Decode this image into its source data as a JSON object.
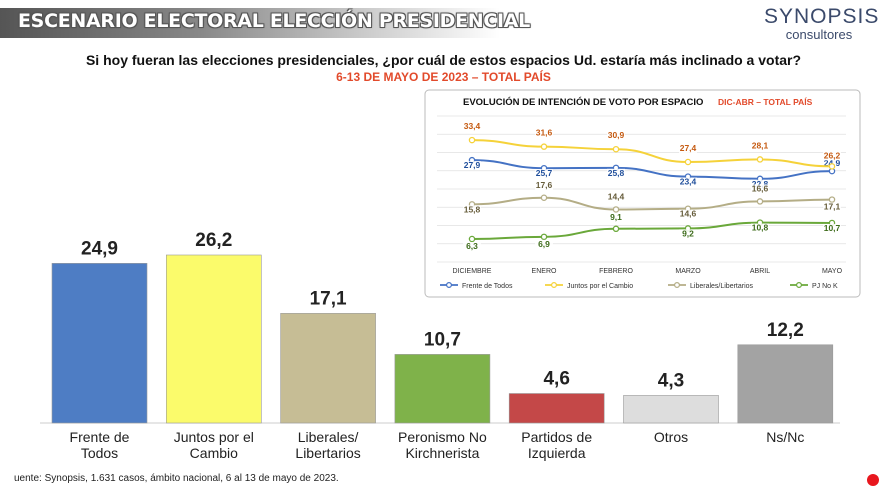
{
  "header": {
    "banner_title": "ESCENARIO ELECTORAL ELECCIÓN PRESIDENCIAL",
    "logo_name": "SYNOPSIS",
    "logo_sub": "consultores",
    "question": "Si hoy fueran las elecciones presidenciales, ¿por cuál de estos espacios Ud. estaría más inclinado a votar?",
    "date_line": "6-13 DE MAYO DE 2023 – TOTAL PAÍS"
  },
  "footer": {
    "source": "uente: Synopsis, 1.631 casos, ámbito nacional, 6 al 13 de mayo de 2023."
  },
  "colors": {
    "accent_red": "#e24a2b",
    "rec_dot": "#e8171e"
  },
  "chart_data": [
    {
      "type": "bar",
      "categories": [
        [
          "Frente de",
          "Todos"
        ],
        [
          "Juntos por el",
          "Cambio"
        ],
        [
          "Liberales/",
          "Libertarios"
        ],
        [
          "Peronismo No",
          "Kirchnerista"
        ],
        [
          "Partidos de",
          "Izquierda"
        ],
        [
          "Otros"
        ],
        [
          "Ns/Nc"
        ]
      ],
      "values": [
        24.9,
        26.2,
        17.1,
        10.7,
        4.6,
        4.3,
        12.2
      ],
      "value_labels": [
        "24,9",
        "26,2",
        "17,1",
        "10,7",
        "4,6",
        "4,3",
        "12,2"
      ],
      "colors": [
        "#4e7dc4",
        "#fbfb6b",
        "#c6bd95",
        "#7fb24a",
        "#c44848",
        "#dddddd",
        "#a3a3a3"
      ],
      "ylim": [
        0,
        26.2
      ],
      "grid": false,
      "legend": "none"
    },
    {
      "type": "line",
      "title": "EVOLUCIÓN DE INTENCIÓN DE VOTO POR ESPACIO",
      "subtitle": "DIC-ABR – TOTAL PAÍS",
      "x": [
        "DICIEMBRE",
        "ENERO",
        "FEBRERO",
        "MARZO",
        "ABRIL",
        "MAYO"
      ],
      "series": [
        {
          "name": "Frente de Todos",
          "color": "#4472c4",
          "values": [
            27.9,
            25.7,
            25.8,
            23.4,
            22.8,
            24.9
          ],
          "labels": [
            "27,9",
            "25,7",
            "25,8",
            "23,4",
            "22,8",
            "24,9"
          ],
          "label_color": "#1f4e9b"
        },
        {
          "name": "Juntos por el Cambio",
          "color": "#f5d23a",
          "values": [
            33.4,
            31.6,
            30.9,
            27.4,
            28.1,
            26.2
          ],
          "labels": [
            "33,4",
            "31,6",
            "30,9",
            "27,4",
            "28,1",
            "26,2"
          ],
          "label_color": "#c55a11"
        },
        {
          "name": "Liberales/Libertarios",
          "color": "#b4ad86",
          "values": [
            15.8,
            17.6,
            14.4,
            14.6,
            16.6,
            17.1
          ],
          "labels": [
            "15,8",
            "17,6",
            "14,4",
            "14,6",
            "16,6",
            "17,1"
          ],
          "label_color": "#665c3a"
        },
        {
          "name": "PJ No K",
          "color": "#6aa83a",
          "values": [
            6.3,
            6.9,
            9.1,
            9.2,
            10.8,
            10.7
          ],
          "labels": [
            "6,3",
            "6,9",
            "9,1",
            "9,2",
            "10,8",
            "10,7"
          ],
          "label_color": "#3d6b1a"
        }
      ],
      "ylim": [
        0,
        40
      ],
      "grid": true,
      "legend": "bottom"
    }
  ]
}
